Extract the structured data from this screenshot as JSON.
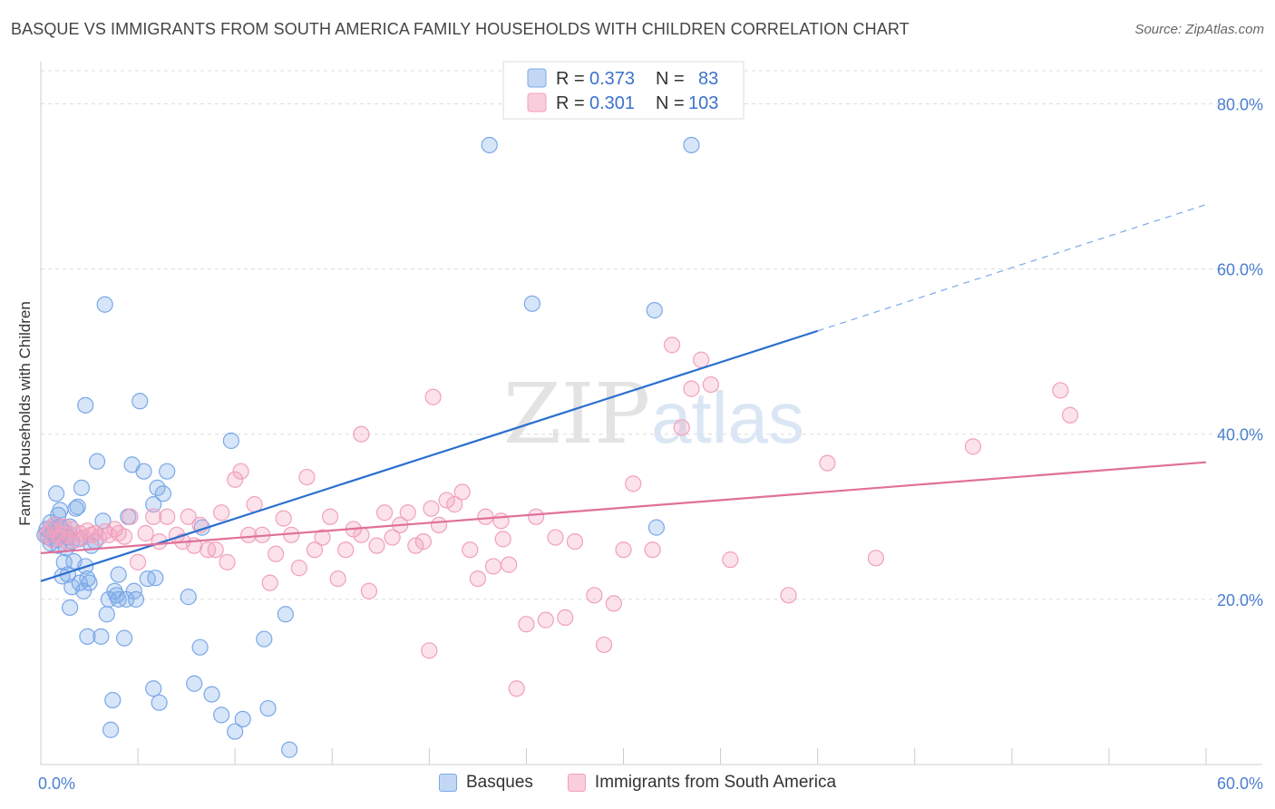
{
  "header": {
    "title": "BASQUE VS IMMIGRANTS FROM SOUTH AMERICA FAMILY HOUSEHOLDS WITH CHILDREN CORRELATION CHART",
    "source": "Source: ZipAtlas.com"
  },
  "watermark": {
    "zip": "ZIP",
    "atlas": "atlas"
  },
  "colors": {
    "blue": "#7aa8e8",
    "blue_line": "#2a6fcf",
    "pink": "#f2a0bd",
    "pink_line": "#e0709a",
    "tick": "#4a7fd0"
  },
  "chart_data": {
    "type": "scatter",
    "ylabel": "Family Households with Children",
    "xlim": [
      0,
      60
    ],
    "ylim": [
      0,
      84
    ],
    "x_ticks": [
      0,
      60
    ],
    "x_tick_labels": [
      "0.0%",
      "60.0%"
    ],
    "y_ticks": [
      20,
      40,
      60,
      80
    ],
    "y_tick_labels": [
      "20.0%",
      "40.0%",
      "60.0%",
      "80.0%"
    ],
    "grid": true,
    "legend_top": [
      {
        "r_label": "R = ",
        "r_value": "0.373",
        "n_label": "N = ",
        "n_value": "83"
      },
      {
        "r_label": "R = ",
        "r_value": "0.301",
        "n_label": "N = ",
        "n_value": "103"
      }
    ],
    "series": [
      {
        "name": "Basques",
        "color": "#7aa8e8",
        "trend": {
          "x0": 0,
          "y0": 22.2,
          "x1": 40,
          "y1": 52.5,
          "dash_x1": 60,
          "dash_y1": 67.8
        },
        "points": [
          [
            0.3,
            28.5
          ],
          [
            0.4,
            27.5
          ],
          [
            0.5,
            26.8
          ],
          [
            0.6,
            28.0
          ],
          [
            0.7,
            29.0
          ],
          [
            0.8,
            27.2
          ],
          [
            0.9,
            26.5
          ],
          [
            1.0,
            28.8
          ],
          [
            0.2,
            27.8
          ],
          [
            0.5,
            29.3
          ],
          [
            0.8,
            32.8
          ],
          [
            1.0,
            30.8
          ],
          [
            1.2,
            28.2
          ],
          [
            1.4,
            27.5
          ],
          [
            1.5,
            28.8
          ],
          [
            1.6,
            27.0
          ],
          [
            1.8,
            31.0
          ],
          [
            1.9,
            31.2
          ],
          [
            2.0,
            27.3
          ],
          [
            2.1,
            33.5
          ],
          [
            1.1,
            22.8
          ],
          [
            1.2,
            24.5
          ],
          [
            1.4,
            23.0
          ],
          [
            1.5,
            19.0
          ],
          [
            1.6,
            21.5
          ],
          [
            2.0,
            22.0
          ],
          [
            2.2,
            21.0
          ],
          [
            2.3,
            24.0
          ],
          [
            2.4,
            22.5
          ],
          [
            2.5,
            22.0
          ],
          [
            2.6,
            26.5
          ],
          [
            2.8,
            27.0
          ],
          [
            2.9,
            36.7
          ],
          [
            3.2,
            29.5
          ],
          [
            3.4,
            18.2
          ],
          [
            3.5,
            20.0
          ],
          [
            3.8,
            21.0
          ],
          [
            3.9,
            20.5
          ],
          [
            4.0,
            20.0
          ],
          [
            4.4,
            20.0
          ],
          [
            4.5,
            30.0
          ],
          [
            4.7,
            36.3
          ],
          [
            4.8,
            21.0
          ],
          [
            4.9,
            20.0
          ],
          [
            5.1,
            44.0
          ],
          [
            5.3,
            35.5
          ],
          [
            5.5,
            22.5
          ],
          [
            5.8,
            31.5
          ],
          [
            5.9,
            22.6
          ],
          [
            6.0,
            33.5
          ],
          [
            6.3,
            32.8
          ],
          [
            6.5,
            35.5
          ],
          [
            2.4,
            15.5
          ],
          [
            3.1,
            15.5
          ],
          [
            4.3,
            15.3
          ],
          [
            5.8,
            9.2
          ],
          [
            6.1,
            7.5
          ],
          [
            7.9,
            9.8
          ],
          [
            8.2,
            14.2
          ],
          [
            8.8,
            8.5
          ],
          [
            9.3,
            6.0
          ],
          [
            9.8,
            39.2
          ],
          [
            10.0,
            4.0
          ],
          [
            10.4,
            5.5
          ],
          [
            11.5,
            15.2
          ],
          [
            11.7,
            6.8
          ],
          [
            12.6,
            18.2
          ],
          [
            12.8,
            1.8
          ],
          [
            3.7,
            7.8
          ],
          [
            3.6,
            4.2
          ],
          [
            3.3,
            55.7
          ],
          [
            2.3,
            43.5
          ],
          [
            23.1,
            75.0
          ],
          [
            25.3,
            55.8
          ],
          [
            31.6,
            55.0
          ],
          [
            33.5,
            75.0
          ],
          [
            4.0,
            23.0
          ],
          [
            7.6,
            20.3
          ],
          [
            8.3,
            28.7
          ],
          [
            31.7,
            28.7
          ],
          [
            1.7,
            24.6
          ],
          [
            1.3,
            26.2
          ],
          [
            0.9,
            30.2
          ]
        ]
      },
      {
        "name": "Immigrants from South America",
        "color": "#f2a0bd",
        "trend": {
          "x0": 0,
          "y0": 25.6,
          "x1": 60,
          "y1": 36.6
        },
        "points": [
          [
            0.3,
            27.8
          ],
          [
            0.5,
            28.5
          ],
          [
            0.6,
            27.2
          ],
          [
            0.7,
            29.0
          ],
          [
            0.9,
            28.0
          ],
          [
            1.0,
            27.5
          ],
          [
            1.2,
            28.8
          ],
          [
            1.3,
            27.0
          ],
          [
            1.5,
            27.8
          ],
          [
            1.6,
            28.5
          ],
          [
            1.8,
            27.2
          ],
          [
            2.0,
            28.0
          ],
          [
            2.2,
            27.5
          ],
          [
            2.4,
            28.3
          ],
          [
            2.6,
            27.8
          ],
          [
            2.8,
            28.0
          ],
          [
            3.0,
            27.5
          ],
          [
            3.3,
            28.2
          ],
          [
            3.5,
            27.8
          ],
          [
            3.8,
            28.5
          ],
          [
            4.0,
            28.0
          ],
          [
            4.3,
            27.6
          ],
          [
            4.6,
            30.0
          ],
          [
            5.0,
            24.5
          ],
          [
            5.4,
            28.0
          ],
          [
            5.8,
            30.0
          ],
          [
            6.1,
            27.0
          ],
          [
            6.5,
            30.0
          ],
          [
            7.0,
            27.8
          ],
          [
            7.3,
            27.0
          ],
          [
            7.6,
            30.0
          ],
          [
            7.9,
            26.5
          ],
          [
            8.2,
            29.0
          ],
          [
            8.6,
            26.0
          ],
          [
            9.0,
            26.0
          ],
          [
            9.3,
            30.5
          ],
          [
            9.6,
            24.5
          ],
          [
            10.0,
            34.5
          ],
          [
            10.3,
            35.5
          ],
          [
            10.7,
            27.8
          ],
          [
            11.0,
            31.5
          ],
          [
            11.4,
            27.8
          ],
          [
            11.8,
            22.0
          ],
          [
            12.1,
            25.5
          ],
          [
            12.5,
            29.8
          ],
          [
            12.9,
            27.8
          ],
          [
            13.3,
            23.8
          ],
          [
            13.7,
            34.8
          ],
          [
            14.1,
            26.0
          ],
          [
            14.5,
            27.5
          ],
          [
            14.9,
            30.0
          ],
          [
            15.3,
            22.5
          ],
          [
            15.7,
            26.0
          ],
          [
            16.1,
            28.5
          ],
          [
            16.5,
            27.8
          ],
          [
            16.9,
            21.0
          ],
          [
            17.3,
            26.5
          ],
          [
            17.7,
            30.5
          ],
          [
            18.1,
            27.5
          ],
          [
            18.5,
            29.0
          ],
          [
            18.9,
            30.5
          ],
          [
            19.3,
            26.5
          ],
          [
            19.7,
            27.0
          ],
          [
            20.1,
            31.0
          ],
          [
            20.5,
            29.0
          ],
          [
            20.9,
            32.0
          ],
          [
            21.3,
            31.5
          ],
          [
            21.7,
            33.0
          ],
          [
            22.1,
            26.0
          ],
          [
            22.5,
            22.5
          ],
          [
            22.9,
            30.0
          ],
          [
            23.3,
            24.0
          ],
          [
            23.7,
            29.5
          ],
          [
            24.1,
            24.2
          ],
          [
            25.0,
            17.0
          ],
          [
            25.5,
            30.0
          ],
          [
            26.0,
            17.5
          ],
          [
            26.5,
            27.5
          ],
          [
            27.0,
            17.8
          ],
          [
            27.5,
            27.0
          ],
          [
            28.5,
            20.5
          ],
          [
            29.0,
            14.5
          ],
          [
            29.5,
            19.5
          ],
          [
            30.0,
            26.0
          ],
          [
            30.5,
            34.0
          ],
          [
            31.5,
            26.0
          ],
          [
            32.5,
            50.8
          ],
          [
            33.0,
            40.8
          ],
          [
            33.5,
            45.5
          ],
          [
            34.0,
            49.0
          ],
          [
            34.5,
            46.0
          ],
          [
            35.5,
            24.8
          ],
          [
            38.5,
            20.5
          ],
          [
            40.5,
            36.5
          ],
          [
            43.0,
            25.0
          ],
          [
            48.0,
            38.5
          ],
          [
            52.5,
            45.3
          ],
          [
            53.0,
            42.3
          ],
          [
            20.0,
            13.8
          ],
          [
            24.5,
            9.2
          ],
          [
            20.2,
            44.5
          ],
          [
            16.5,
            40.0
          ],
          [
            23.8,
            27.3
          ]
        ]
      }
    ]
  },
  "bottom_legend": [
    {
      "label": "Basques"
    },
    {
      "label": "Immigrants from South America"
    }
  ]
}
